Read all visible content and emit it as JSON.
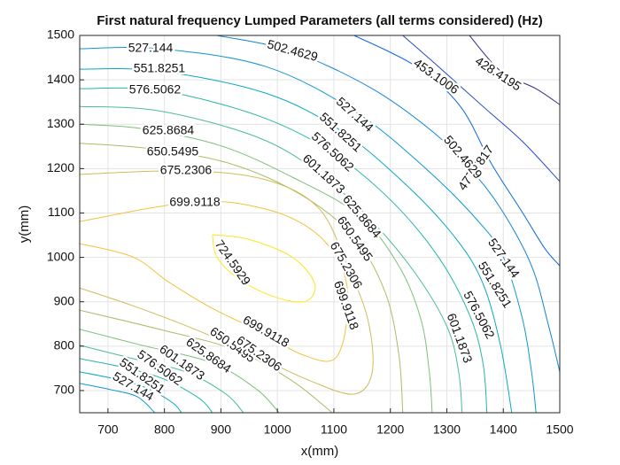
{
  "chart_data": {
    "type": "contour",
    "title": "First natural frequency Lumped Parameters (all terms considered) (Hz)",
    "x_label": "x(mm)",
    "y_label": "y(mm)",
    "xlim": [
      650,
      1500
    ],
    "ylim": [
      650,
      1500
    ],
    "xticks": [
      700,
      800,
      900,
      1000,
      1100,
      1200,
      1300,
      1400,
      1500
    ],
    "yticks": [
      700,
      800,
      900,
      1000,
      1100,
      1200,
      1300,
      1400,
      1500
    ],
    "grid": true,
    "series": [
      {
        "level": 428.4195,
        "color": "#352a87",
        "x": [
          1340,
          1395,
          1458,
          1500
        ],
        "y": [
          1500,
          1420,
          1380,
          1344
        ]
      },
      {
        "level": 453.1006,
        "color": "#2549c6",
        "x": [
          1222,
          1285,
          1364,
          1434,
          1500
        ],
        "y": [
          1500,
          1430,
          1340,
          1261,
          1171
        ]
      },
      {
        "level": 477.7817,
        "color": "#0d67e0",
        "x": [
          1136,
          1246,
          1324,
          1379,
          1434,
          1473,
          1500
        ],
        "y": [
          1500,
          1430,
          1340,
          1211,
          1101,
          1021,
          981
        ]
      },
      {
        "level": 502.4629,
        "color": "#1482d6",
        "x": [
          893,
          1026,
          1168,
          1277,
          1340,
          1395,
          1450,
          1481,
          1500
        ],
        "y": [
          1500,
          1464,
          1380,
          1281,
          1201,
          1111,
          981,
          842,
          742
        ]
      },
      {
        "level": 527.144,
        "color": "#0e98cd",
        "x": [
          650,
          791,
          979,
          1136,
          1262,
          1356,
          1400,
          1434,
          1450,
          1458,
          null,
          650,
          705,
          752,
          783
        ],
        "y": [
          1470,
          1470,
          1430,
          1330,
          1201,
          1081,
          1001,
          861,
          742,
          650,
          null,
          716,
          702,
          686,
          650
        ]
      },
      {
        "level": 551.8251,
        "color": "#06a9c1",
        "x": [
          650,
          791,
          979,
          1113,
          1230,
          1317,
          1364,
          1395,
          1415,
          null,
          650,
          713,
          768,
          815,
          830
        ],
        "y": [
          1424,
          1420,
          1370,
          1285,
          1161,
          1041,
          941,
          802,
          650,
          null,
          742,
          726,
          706,
          672,
          650
        ]
      },
      {
        "level": 576.5062,
        "color": "#26b5a9",
        "x": [
          650,
          791,
          964,
          1092,
          1199,
          1285,
          1340,
          1364,
          1371,
          null,
          650,
          728,
          799,
          862,
          885
        ],
        "y": [
          1380,
          1376,
          1320,
          1241,
          1131,
          1001,
          871,
          762,
          650,
          null,
          772,
          752,
          726,
          682,
          650
        ]
      },
      {
        "level": 601.1873,
        "color": "#4bbd8f",
        "x": [
          650,
          791,
          964,
          1073,
          1168,
          1246,
          1301,
          1321,
          1327,
          null,
          650,
          744,
          838,
          909,
          940
        ],
        "y": [
          1340,
          1330,
          1271,
          1191,
          1081,
          961,
          842,
          742,
          650,
          null,
          802,
          772,
          742,
          692,
          650
        ]
      },
      {
        "level": 625.8684,
        "color": "#7cbf7b",
        "x": [
          650,
          760,
          901,
          1026,
          1144,
          1215,
          1254,
          1269,
          1274,
          null,
          650,
          760,
          885,
          964,
          1003
        ],
        "y": [
          1300,
          1290,
          1251,
          1181,
          1095,
          981,
          861,
          742,
          650,
          null,
          838,
          802,
          762,
          702,
          650
        ]
      },
      {
        "level": 650.5495,
        "color": "#a8be66",
        "x": [
          650,
          775,
          917,
          1042,
          1136,
          1191,
          1215,
          1222,
          null,
          650,
          791,
          924,
          1026,
          1097
        ],
        "y": [
          1257,
          1245,
          1211,
          1141,
          1045,
          921,
          782,
          650,
          null,
          881,
          838,
          792,
          722,
          650
        ]
      },
      {
        "level": 675.2306,
        "color": "#d1bb59",
        "x": [
          650,
          838,
          979,
          1073,
          1124,
          1160,
          1168,
          1136,
          1058,
          956,
          854,
          744,
          650
        ],
        "y": [
          1187,
          1195,
          1175,
          1111,
          981,
          861,
          742,
          692,
          722,
          782,
          838,
          891,
          931
        ]
      },
      {
        "level": 699.9118,
        "color": "#f2c23a",
        "x": [
          650,
          854,
          979,
          1066,
          1116,
          1124,
          1102,
          1042,
          971,
          885,
          807,
          744,
          650
        ],
        "y": [
          1081,
          1125,
          1109,
          1057,
          971,
          871,
          772,
          782,
          832,
          885,
          945,
          1001,
          1031
        ]
      },
      {
        "level": 724.5929,
        "color": "#f9e724",
        "x": [
          885,
          948,
          1026,
          1066,
          1050,
          995,
          932,
          893,
          885
        ],
        "y": [
          1051,
          1041,
          1001,
          941,
          901,
          911,
          951,
          1001,
          1051
        ]
      }
    ]
  }
}
